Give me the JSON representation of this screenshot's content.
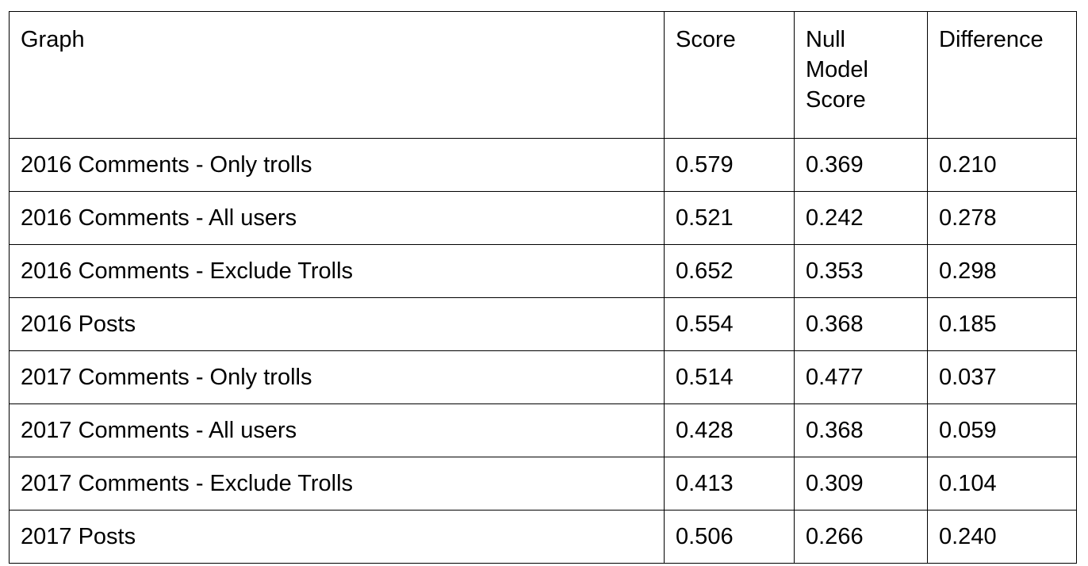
{
  "table": {
    "headers": [
      "Graph",
      "Score",
      "Null Model Score",
      "Difference"
    ],
    "rows": [
      [
        "2016 Comments - Only trolls",
        "0.579",
        "0.369",
        "0.210"
      ],
      [
        "2016 Comments - All users",
        "0.521",
        "0.242",
        "0.278"
      ],
      [
        "2016 Comments - Exclude Trolls",
        "0.652",
        "0.353",
        "0.298"
      ],
      [
        "2016 Posts",
        "0.554",
        "0.368",
        "0.185"
      ],
      [
        "2017 Comments - Only trolls",
        "0.514",
        "0.477",
        "0.037"
      ],
      [
        "2017 Comments - All users",
        "0.428",
        "0.368",
        "0.059"
      ],
      [
        "2017 Comments - Exclude Trolls",
        "0.413",
        "0.309",
        "0.104"
      ],
      [
        "2017 Posts",
        "0.506",
        "0.266",
        "0.240"
      ]
    ]
  }
}
